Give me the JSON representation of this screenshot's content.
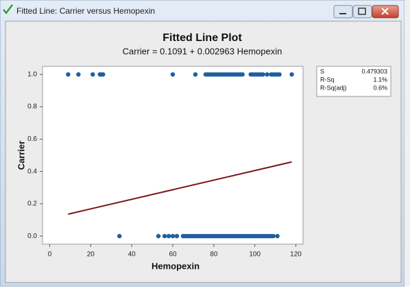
{
  "window": {
    "title": "Fitted Line: Carrier versus Hemopexin"
  },
  "chart_data": {
    "type": "scatter",
    "title": "Fitted Line Plot",
    "subtitle": "Carrier = 0.1091 + 0.002963 Hemopexin",
    "x_label": "Hemopexin",
    "y_label": "Carrier",
    "color": "#1f5f9f",
    "x": [
      9,
      14,
      21,
      24.5,
      25,
      26,
      60,
      71,
      76,
      77,
      78,
      79,
      80,
      81,
      82,
      83,
      84,
      85,
      86,
      87,
      88,
      89,
      90,
      91,
      92,
      93,
      94,
      98,
      99,
      100,
      101,
      102,
      103,
      104,
      106,
      108,
      109,
      110,
      111,
      112,
      118,
      34,
      53,
      56,
      58,
      60,
      62,
      65,
      66,
      67,
      68,
      69,
      70,
      71,
      72,
      73,
      74,
      75,
      76,
      77,
      78,
      79,
      80,
      81,
      82,
      83,
      84,
      85,
      86,
      87,
      88,
      89,
      90,
      91,
      92,
      93,
      94,
      95,
      96,
      97,
      98,
      99,
      100,
      101,
      102,
      103,
      104,
      105,
      106,
      107,
      108,
      109,
      111
    ],
    "values": [
      1,
      1,
      1,
      1,
      1,
      1,
      1,
      1,
      1,
      1,
      1,
      1,
      1,
      1,
      1,
      1,
      1,
      1,
      1,
      1,
      1,
      1,
      1,
      1,
      1,
      1,
      1,
      1,
      1,
      1,
      1,
      1,
      1,
      1,
      1,
      1,
      1,
      1,
      1,
      1,
      1,
      0,
      0,
      0,
      0,
      0,
      0,
      0,
      0,
      0,
      0,
      0,
      0,
      0,
      0,
      0,
      0,
      0,
      0,
      0,
      0,
      0,
      0,
      0,
      0,
      0,
      0,
      0,
      0,
      0,
      0,
      0,
      0,
      0,
      0,
      0,
      0,
      0,
      0,
      0,
      0,
      0,
      0,
      0,
      0,
      0,
      0,
      0,
      0,
      0,
      0,
      0,
      0
    ],
    "fit": {
      "intercept": 0.1091,
      "slope": 0.002963,
      "color": "#7a1518"
    },
    "xlim": [
      -3.5,
      123.5
    ],
    "xticks": [
      0,
      20,
      40,
      60,
      80,
      100,
      120
    ],
    "ylim": [
      -0.05,
      1.05
    ],
    "yticks": [
      {
        "value": 0,
        "label": "0.0"
      },
      0.2,
      0.4,
      0.6,
      0.8,
      {
        "value": 1,
        "label": "1.0"
      }
    ],
    "stats": [
      {
        "label": "S",
        "value": "0.479303"
      },
      {
        "label": "R-Sq",
        "value": "1.1%"
      },
      {
        "label": "R-Sq(adj)",
        "value": "0.6%"
      }
    ]
  }
}
